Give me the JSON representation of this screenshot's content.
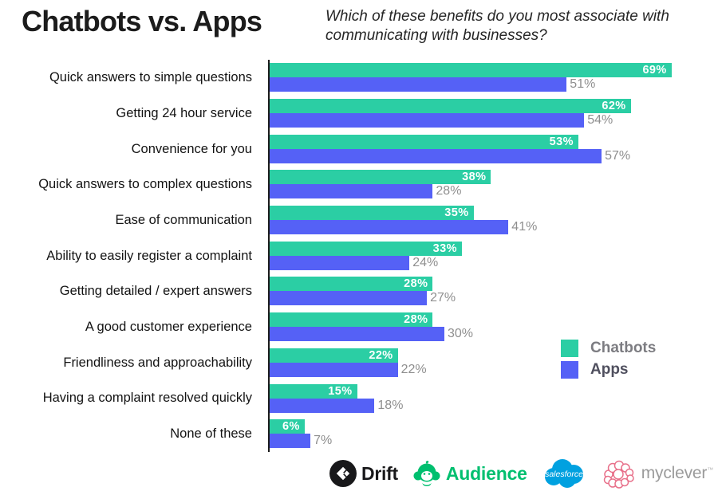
{
  "header": {
    "title": "Chatbots vs. Apps",
    "subtitle": "Which of these benefits do you most associate with communicating with businesses?"
  },
  "chart_data": {
    "type": "bar",
    "orientation": "horizontal",
    "title": "Chatbots vs. Apps",
    "question": "Which of these benefits do you most associate with communicating with businesses?",
    "categories": [
      "Quick answers to simple questions",
      "Getting 24 hour service",
      "Convenience for you",
      "Quick answers to complex questions",
      "Ease of communication",
      "Ability to easily register a complaint",
      "Getting detailed / expert answers",
      "A good customer experience",
      "Friendliness and approachability",
      "Having a complaint resolved quickly",
      "None of these"
    ],
    "series": [
      {
        "name": "Chatbots",
        "color": "#2BCEA4",
        "values": [
          69,
          62,
          53,
          38,
          35,
          33,
          28,
          28,
          22,
          15,
          6
        ]
      },
      {
        "name": "Apps",
        "color": "#5561F6",
        "values": [
          51,
          54,
          57,
          28,
          41,
          24,
          27,
          30,
          22,
          18,
          7
        ]
      }
    ],
    "value_suffix": "%",
    "xlim": [
      0,
      71
    ],
    "grid": false,
    "legend_position": "middle-right",
    "value_label_placement": {
      "Chatbots": "inside-end",
      "Apps": "outside-end"
    }
  },
  "legend": {
    "items": [
      {
        "label": "Chatbots",
        "swatch_color": "#2BCEA4",
        "text_color": "#7c7c81"
      },
      {
        "label": "Apps",
        "swatch_color": "#5561F6",
        "text_color": "#4f4f5e"
      }
    ]
  },
  "footer": {
    "logos": [
      {
        "id": "drift",
        "text": "Drift"
      },
      {
        "id": "audience",
        "text": "Audience"
      },
      {
        "id": "salesforce",
        "text": "salesforce"
      },
      {
        "id": "myclever",
        "text": "myclever",
        "tm": "™"
      }
    ]
  },
  "colors": {
    "axis": "#1b1b1b",
    "category_text": "#131313",
    "value_inside": "#ffffff",
    "value_outside": "#8f8f8f",
    "chatbots": "#2BCEA4",
    "apps": "#5561F6",
    "drift_black": "#18181a",
    "audience_green": "#00BF6F",
    "salesforce_blue": "#00A1E0",
    "myclever_pink": "#e8708a",
    "background": "#ffffff"
  }
}
